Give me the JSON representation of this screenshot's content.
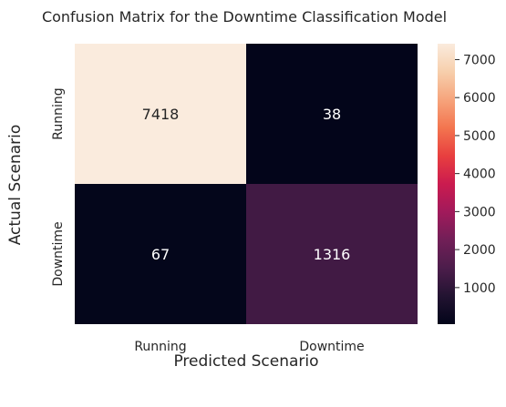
{
  "chart_data": {
    "type": "heatmap",
    "title": "Confusion Matrix for the Downtime Classification Model",
    "xlabel": "Predicted Scenario",
    "ylabel": "Actual Scenario",
    "x_categories": [
      "Running",
      "Downtime"
    ],
    "y_categories": [
      "Running",
      "Downtime"
    ],
    "values": [
      [
        7418,
        38
      ],
      [
        67,
        1316
      ]
    ],
    "colorbar": {
      "min": 38,
      "max": 7418,
      "ticks": [
        1000,
        2000,
        3000,
        4000,
        5000,
        6000,
        7000
      ],
      "colormap": "rocket"
    }
  }
}
